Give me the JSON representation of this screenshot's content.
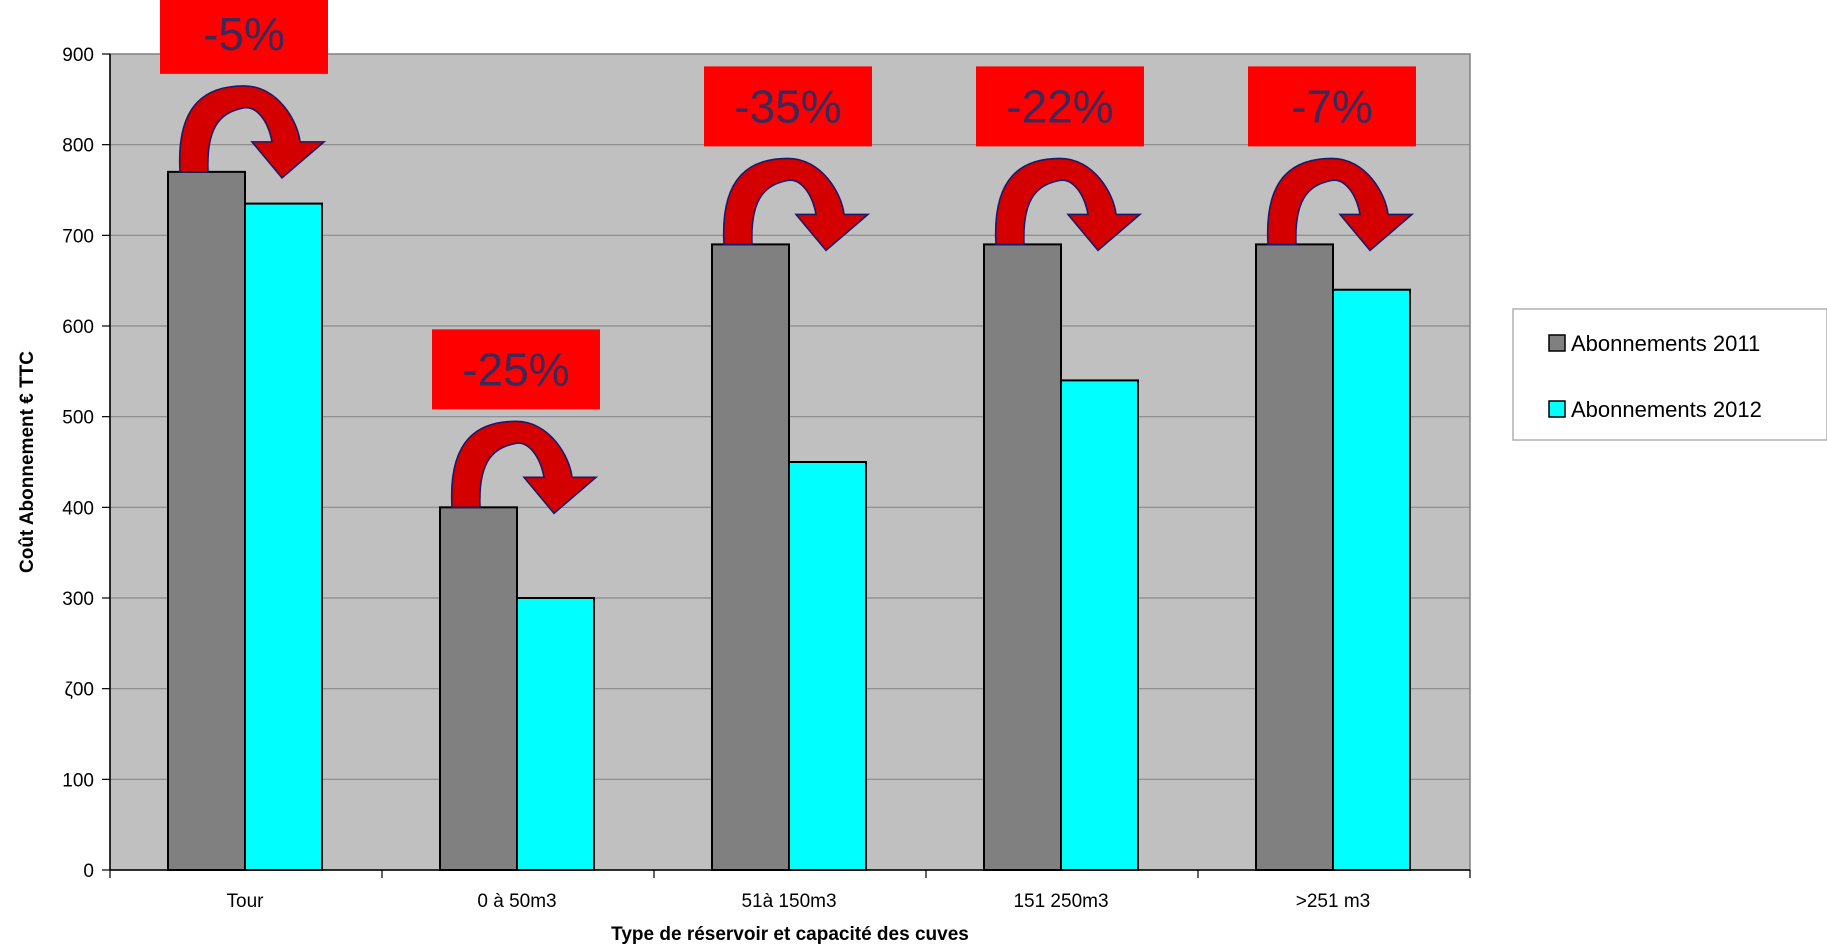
{
  "chart_data": {
    "type": "bar",
    "title": "",
    "xlabel": "Type de réservoir et capacité des cuves",
    "ylabel": "Coût Abonnement € TTC",
    "ylim": [
      0,
      900
    ],
    "yticks": [
      "0",
      "100",
      "ζ00",
      "300",
      "400",
      "500",
      "600",
      "700",
      "800",
      "900"
    ],
    "grid": true,
    "legend_position": "right",
    "categories": [
      "Tour",
      "0 à 50m3",
      "51à 150m3",
      "151 250m3",
      ">251 m3"
    ],
    "series": [
      {
        "name": "Abonnements 2011",
        "color": "#808080",
        "values": [
          770,
          400,
          690,
          690,
          690
        ]
      },
      {
        "name": "Abonnements 2012",
        "color": "#00FFFF",
        "values": [
          735,
          300,
          450,
          540,
          640
        ]
      }
    ],
    "annotations": [
      "-5%",
      "-25%",
      "-35%",
      "-22%",
      "-7%"
    ],
    "colors": {
      "plot_background": "#C0C0C0",
      "badge": "#FF0000",
      "arrow": "#D40000",
      "arrow_outline": "#1a1a6a"
    }
  }
}
